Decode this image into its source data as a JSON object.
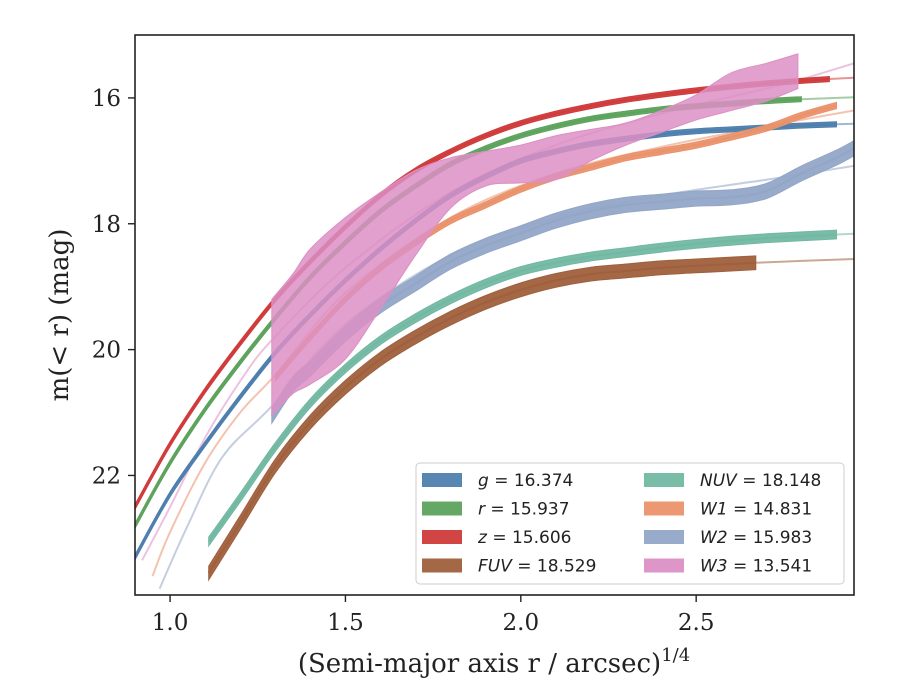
{
  "chart_data": {
    "type": "line",
    "xlabel": "(Semi-major axis r / arcsec)",
    "xlabel_superscript": "1/4",
    "ylabel": "m(< r) (mag)",
    "xlim": [
      0.9,
      2.95
    ],
    "ylim": [
      23.9,
      15.0
    ],
    "y_inverted": true,
    "x_ticks": [
      1.0,
      1.5,
      2.0,
      2.5
    ],
    "x_tick_labels": [
      "1.0",
      "1.5",
      "2.0",
      "2.5"
    ],
    "y_ticks": [
      16,
      18,
      20,
      22
    ],
    "y_tick_labels": [
      "16",
      "18",
      "20",
      "22"
    ],
    "grid": false,
    "legend_position": "lower-right",
    "series": [
      {
        "name": "g = 16.374",
        "legend_var": "g",
        "legend_value": "16.374",
        "color": "#4e7fae",
        "band_width": 0.08,
        "x": [
          0.9,
          1.0,
          1.1,
          1.2,
          1.3,
          1.4,
          1.5,
          1.6,
          1.7,
          1.8,
          1.9,
          2.0,
          2.1,
          2.2,
          2.3,
          2.4,
          2.5,
          2.6,
          2.7,
          2.8,
          2.9
        ],
        "y": [
          23.3,
          22.3,
          21.5,
          20.75,
          20.05,
          19.45,
          18.9,
          18.4,
          17.95,
          17.55,
          17.25,
          17.0,
          16.85,
          16.73,
          16.65,
          16.58,
          16.53,
          16.5,
          16.47,
          16.44,
          16.42
        ],
        "model_x": [
          2.9,
          2.95
        ],
        "model_y": [
          16.42,
          16.41
        ]
      },
      {
        "name": "r = 15.937",
        "legend_var": "r",
        "legend_value": "15.937",
        "color": "#5da35d",
        "band_width": 0.08,
        "x": [
          0.9,
          1.0,
          1.1,
          1.2,
          1.3,
          1.4,
          1.5,
          1.6,
          1.7,
          1.8,
          1.9,
          2.0,
          2.1,
          2.2,
          2.3,
          2.4,
          2.5,
          2.6,
          2.7,
          2.8
        ],
        "y": [
          22.8,
          21.8,
          20.95,
          20.2,
          19.5,
          18.85,
          18.3,
          17.8,
          17.4,
          17.05,
          16.8,
          16.6,
          16.45,
          16.33,
          16.25,
          16.18,
          16.13,
          16.09,
          16.05,
          16.02
        ],
        "model_x": [
          2.8,
          2.95
        ],
        "model_y": [
          16.02,
          15.99
        ]
      },
      {
        "name": "z = 15.606",
        "legend_var": "z",
        "legend_value": "15.606",
        "color": "#d03b3b",
        "band_width": 0.08,
        "x": [
          0.9,
          1.0,
          1.1,
          1.2,
          1.3,
          1.4,
          1.5,
          1.6,
          1.7,
          1.8,
          1.9,
          2.0,
          2.1,
          2.2,
          2.3,
          2.4,
          2.5,
          2.6,
          2.7,
          2.8,
          2.88
        ],
        "y": [
          22.5,
          21.5,
          20.65,
          19.9,
          19.2,
          18.6,
          18.05,
          17.55,
          17.15,
          16.85,
          16.6,
          16.4,
          16.25,
          16.13,
          16.03,
          15.95,
          15.88,
          15.82,
          15.77,
          15.73,
          15.7
        ],
        "model_x": [
          2.88,
          2.95
        ],
        "model_y": [
          15.7,
          15.68
        ]
      },
      {
        "name": "FUV = 18.529",
        "legend_var": "FUV",
        "legend_value": "18.529",
        "color": "#a0603d",
        "band_width": 0.22,
        "x": [
          1.11,
          1.2,
          1.3,
          1.4,
          1.5,
          1.6,
          1.7,
          1.8,
          1.9,
          2.0,
          2.1,
          2.2,
          2.3,
          2.4,
          2.5,
          2.6,
          2.67
        ],
        "y": [
          23.55,
          22.75,
          21.85,
          21.15,
          20.6,
          20.15,
          19.8,
          19.5,
          19.25,
          19.05,
          18.9,
          18.8,
          18.75,
          18.7,
          18.67,
          18.64,
          18.62
        ],
        "model_x": [
          2.67,
          2.8,
          2.95
        ],
        "model_y": [
          18.62,
          18.59,
          18.56
        ]
      },
      {
        "name": "NUV = 18.148",
        "legend_var": "NUV",
        "legend_value": "18.148",
        "color": "#72b8a2",
        "band_width": 0.14,
        "x": [
          1.11,
          1.2,
          1.3,
          1.4,
          1.5,
          1.6,
          1.7,
          1.8,
          1.9,
          2.0,
          2.1,
          2.2,
          2.3,
          2.4,
          2.5,
          2.6,
          2.7,
          2.8,
          2.9
        ],
        "y": [
          23.05,
          22.35,
          21.55,
          20.85,
          20.3,
          19.85,
          19.5,
          19.2,
          18.95,
          18.75,
          18.62,
          18.52,
          18.45,
          18.38,
          18.32,
          18.27,
          18.23,
          18.2,
          18.17
        ],
        "model_x": [
          2.9,
          2.95
        ],
        "model_y": [
          18.17,
          18.16
        ]
      },
      {
        "name": "W1 = 14.831",
        "legend_var": "W1",
        "legend_value": "14.831",
        "color": "#ea926b",
        "band_width": 0.1,
        "x": [
          1.3,
          1.4,
          1.5,
          1.6,
          1.7,
          1.8,
          1.9,
          2.0,
          2.1,
          2.2,
          2.3,
          2.4,
          2.5,
          2.6,
          2.7,
          2.8,
          2.9
        ],
        "y": [
          20.45,
          19.8,
          19.2,
          18.7,
          18.3,
          17.95,
          17.7,
          17.45,
          17.25,
          17.1,
          16.95,
          16.85,
          16.75,
          16.62,
          16.48,
          16.28,
          16.12
        ],
        "model_x": [
          0.95,
          1.0,
          1.1,
          1.2,
          1.3,
          1.5,
          1.8,
          2.1,
          2.4,
          2.7,
          2.95
        ],
        "model_y": [
          23.6,
          22.9,
          21.8,
          21.0,
          20.4,
          19.1,
          17.9,
          17.2,
          16.78,
          16.45,
          16.2
        ]
      },
      {
        "name": "W2 = 15.983",
        "legend_var": "W2",
        "legend_value": "15.983",
        "color": "#94a6c8",
        "band_width": 0.24,
        "x": [
          1.29,
          1.35,
          1.4,
          1.5,
          1.6,
          1.7,
          1.8,
          1.9,
          2.0,
          2.1,
          2.2,
          2.3,
          2.4,
          2.5,
          2.6,
          2.7,
          2.8,
          2.9,
          2.95
        ],
        "y": [
          21.05,
          20.55,
          20.3,
          19.75,
          19.3,
          18.95,
          18.6,
          18.35,
          18.15,
          17.95,
          17.8,
          17.7,
          17.65,
          17.6,
          17.58,
          17.48,
          17.2,
          16.95,
          16.8
        ],
        "model_x": [
          0.97,
          1.05,
          1.15,
          1.29,
          1.5,
          1.8,
          2.1,
          2.4,
          2.7,
          2.95
        ],
        "model_y": [
          23.8,
          22.8,
          21.7,
          20.9,
          19.6,
          18.5,
          17.9,
          17.55,
          17.3,
          17.08
        ]
      },
      {
        "name": "W3 = 13.541",
        "legend_var": "W3",
        "legend_value": "13.541",
        "color": "#dc8fc4",
        "band": true,
        "x": [
          1.29,
          1.35,
          1.4,
          1.5,
          1.6,
          1.7,
          1.8,
          1.9,
          2.0,
          2.1,
          2.2,
          2.3,
          2.4,
          2.5,
          2.6,
          2.7,
          2.79
        ],
        "y_upper": [
          19.2,
          18.8,
          18.4,
          17.9,
          17.5,
          17.15,
          16.95,
          16.85,
          16.75,
          16.6,
          16.5,
          16.4,
          16.2,
          15.95,
          15.6,
          15.45,
          15.3
        ],
        "y_lower": [
          21.05,
          20.7,
          20.55,
          20.15,
          19.35,
          18.5,
          17.75,
          17.4,
          17.35,
          17.3,
          17.0,
          16.75,
          16.55,
          16.35,
          16.2,
          16.05,
          15.85
        ],
        "model_x": [
          0.92,
          1.0,
          1.1,
          1.2,
          1.29,
          1.5,
          1.8,
          2.1,
          2.4,
          2.7,
          2.79,
          2.95
        ],
        "model_y": [
          23.35,
          22.5,
          21.4,
          20.5,
          19.85,
          18.7,
          17.5,
          16.75,
          16.25,
          15.85,
          15.72,
          15.45
        ]
      }
    ]
  }
}
